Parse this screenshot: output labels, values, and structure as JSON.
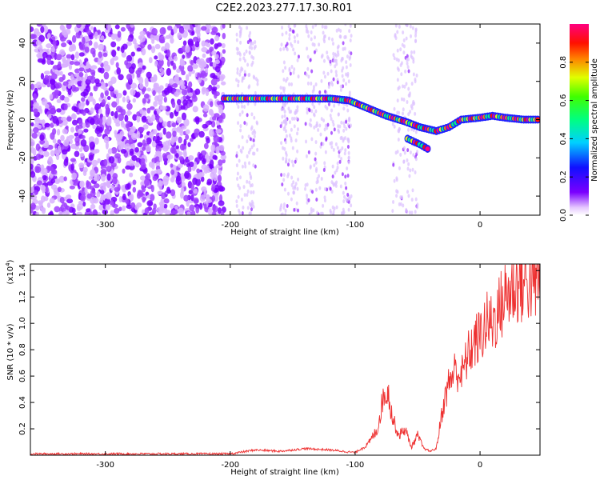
{
  "title": "C2E2.2023.277.17.30.R01",
  "chart_data": [
    {
      "type": "heatmap",
      "xlabel": "Height of straight line (km)",
      "ylabel": "Frequency (Hz)",
      "xlim": [
        -360,
        48
      ],
      "ylim": [
        -50,
        50
      ],
      "xticks": [
        -300,
        -200,
        -100,
        0
      ],
      "yticks": [
        -40,
        -20,
        0,
        20,
        40
      ],
      "colorbar": {
        "label": "Normalized spectral amplitude",
        "range": [
          0,
          1
        ],
        "ticks": [
          0.0,
          0.2,
          0.4,
          0.6,
          0.8
        ],
        "colormap": "rainbow (violet to red to magenta)"
      },
      "ridge": [
        {
          "x": -205,
          "y": 11
        },
        {
          "x": -150,
          "y": 11
        },
        {
          "x": -120,
          "y": 11
        },
        {
          "x": -105,
          "y": 10
        },
        {
          "x": -90,
          "y": 6
        },
        {
          "x": -75,
          "y": 2
        },
        {
          "x": -60,
          "y": -1
        },
        {
          "x": -48,
          "y": -4
        },
        {
          "x": -35,
          "y": -6
        },
        {
          "x": -25,
          "y": -4
        },
        {
          "x": -15,
          "y": 0
        },
        {
          "x": 0,
          "y": 1
        },
        {
          "x": 10,
          "y": 2
        },
        {
          "x": 20,
          "y": 1
        },
        {
          "x": 35,
          "y": 0
        },
        {
          "x": 48,
          "y": 0
        }
      ],
      "branch": [
        {
          "x": -58,
          "y": -10
        },
        {
          "x": -48,
          "y": -13
        },
        {
          "x": -40,
          "y": -16
        }
      ],
      "grid": false
    },
    {
      "type": "line",
      "xlabel": "Height of straight line (km)",
      "ylabel": "SNR (10 * v/v)",
      "yexponent": "(x10",
      "yexponent_power": "4",
      "yexponent_close": ")",
      "xlim": [
        -360,
        48
      ],
      "ylim": [
        0,
        1.45
      ],
      "xticks": [
        -300,
        -200,
        -100,
        0
      ],
      "yticks": [
        0.2,
        0.4,
        0.6,
        0.8,
        1.0,
        1.2,
        1.4
      ],
      "color": "#ee3030",
      "series": [
        {
          "x": [
            -360,
            -300,
            -250,
            -200,
            -180,
            -160,
            -140,
            -120,
            -100,
            -90,
            -82,
            -78,
            -74,
            -70,
            -65,
            -60,
            -55,
            -50,
            -45,
            -40,
            -35,
            -30,
            -25,
            -20,
            -15,
            -10,
            -5,
            0,
            5,
            10,
            15,
            20,
            25,
            30,
            40,
            48
          ],
          "y": [
            0.01,
            0.01,
            0.01,
            0.01,
            0.04,
            0.03,
            0.05,
            0.04,
            0.02,
            0.08,
            0.2,
            0.42,
            0.5,
            0.28,
            0.15,
            0.2,
            0.06,
            0.15,
            0.05,
            0.03,
            0.05,
            0.35,
            0.55,
            0.65,
            0.6,
            0.75,
            0.85,
            0.9,
            1.0,
            1.0,
            1.1,
            1.2,
            1.25,
            1.3,
            1.32,
            1.3
          ]
        }
      ],
      "grid": false
    }
  ]
}
